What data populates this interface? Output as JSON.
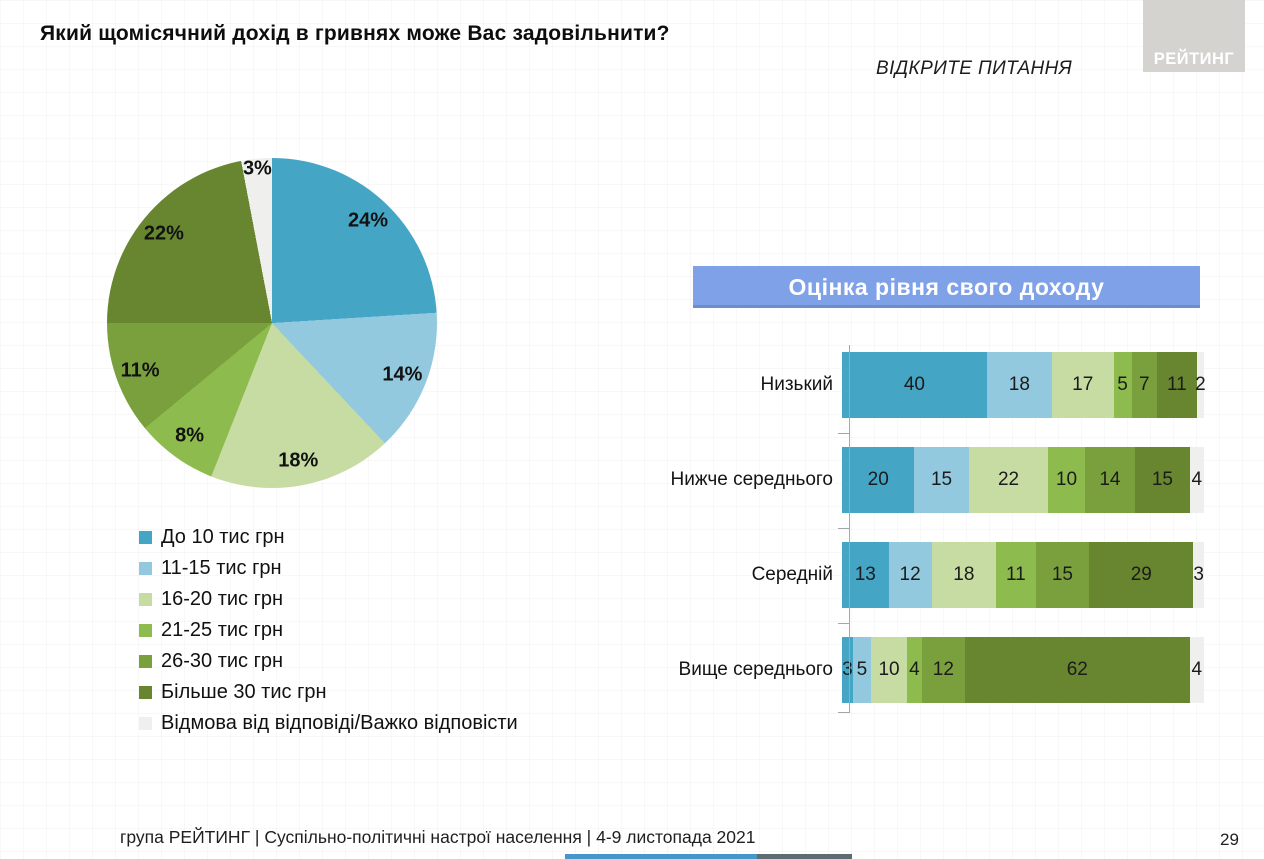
{
  "page": {
    "title": "Який щомісячний дохід в гривнях може Вас задовільнити?",
    "subtitle": "ВІДКРИТЕ ПИТАННЯ",
    "logo_text": "РЕЙТИНГ",
    "footer": "група РЕЙТИНГ | Суспільно-політичні настрої населення  | 4-9 листопада 2021",
    "page_number": "29"
  },
  "colors": {
    "series": [
      "#44A5C5",
      "#92C9DF",
      "#C7DCA2",
      "#8EBB4E",
      "#7AA03E",
      "#68862F",
      "#EFEFED"
    ],
    "banner_bg": "#7FA1E8",
    "logo_bg": "#D4D3D0",
    "axis": "#A6A6A6",
    "progress_played": "#4796C9",
    "progress_dark": "#5E6B70"
  },
  "chart_data": [
    {
      "type": "pie",
      "title": "",
      "labels": [
        "До 10 тис грн",
        "11-15 тис грн",
        "16-20 тис грн",
        "21-25 тис грн",
        "26-30 тис грн",
        "Більше 30 тис грн",
        "Відмова від відповіді/Важко відповісти"
      ],
      "values": [
        24,
        14,
        18,
        8,
        11,
        22,
        3
      ],
      "value_labels": [
        "24%",
        "14%",
        "18%",
        "8%",
        "11%",
        "22%",
        "3%"
      ],
      "start_angle_deg": 0,
      "direction": "clockwise",
      "legend_position": "below-left"
    },
    {
      "type": "bar",
      "subtype": "horizontal-stacked",
      "title": "Оцінка рівня свого доходу",
      "categories": [
        "Низький",
        "Нижче середнього",
        "Середній",
        "Вище середнього"
      ],
      "series": [
        {
          "name": "До 10 тис грн",
          "values": [
            40,
            20,
            13,
            3
          ]
        },
        {
          "name": "11-15 тис грн",
          "values": [
            18,
            15,
            12,
            5
          ]
        },
        {
          "name": "16-20 тис грн",
          "values": [
            17,
            22,
            18,
            10
          ]
        },
        {
          "name": "21-25 тис грн",
          "values": [
            5,
            10,
            11,
            4
          ]
        },
        {
          "name": "26-30 тис грн",
          "values": [
            7,
            14,
            15,
            12
          ]
        },
        {
          "name": "Більше 30 тис грн",
          "values": [
            11,
            15,
            29,
            62
          ]
        },
        {
          "name": "Відмова від відповіді/Важко відповісти",
          "values": [
            2,
            4,
            3,
            4
          ]
        }
      ],
      "xlim": [
        0,
        100
      ],
      "value_labels_shown": true,
      "grid": false
    }
  ]
}
